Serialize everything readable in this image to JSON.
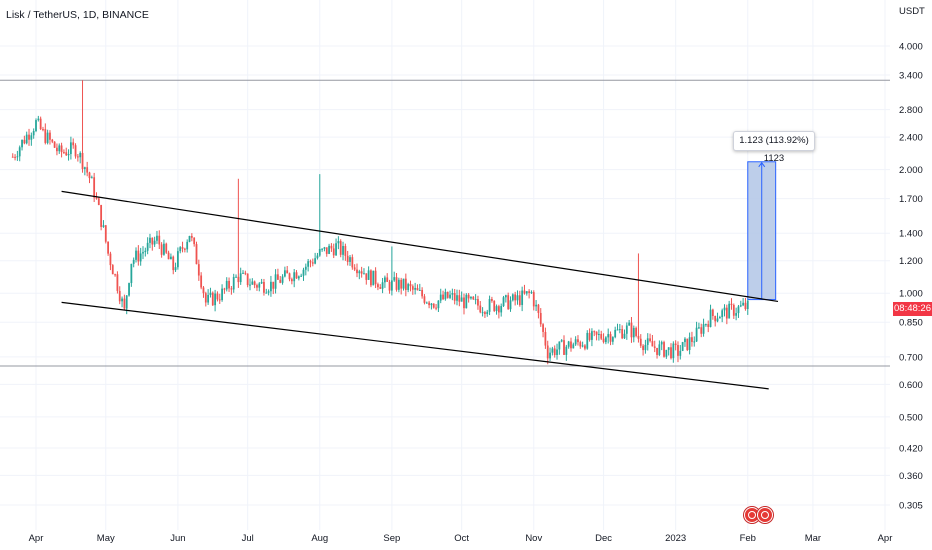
{
  "header": {
    "symbol": "Lisk / TetherUS",
    "separator1": ", ",
    "interval": "1D",
    "separator2": ", ",
    "exchange": "BINANCE"
  },
  "price_axis": {
    "currency": "USDT",
    "labels": [
      "4.000",
      "3.400",
      "2.800",
      "2.400",
      "2.000",
      "1.700",
      "1.400",
      "1.200",
      "1.000",
      "0.850",
      "0.700",
      "0.600",
      "0.500",
      "0.420",
      "0.360",
      "0.305"
    ]
  },
  "time_axis": {
    "labels": [
      "Apr",
      "May",
      "Jun",
      "Jul",
      "Aug",
      "Sep",
      "Oct",
      "Nov",
      "Dec",
      "2023",
      "Feb",
      "Mar",
      "Apr"
    ]
  },
  "countdown": "08:48:26",
  "measure": {
    "label": "1.123 (113.92%) 1123"
  },
  "colors": {
    "up": "#26a69a",
    "down": "#ef5350",
    "trendline": "#000000",
    "measure_fill": "#b2c6e6",
    "measure_border": "#2962ff",
    "horizontal_line": "#9598a1",
    "grid": "#f0f3fa",
    "axis_text": "#131722",
    "price_badge": "#f23645"
  },
  "chart_data": {
    "type": "candlestick",
    "title": "Lisk / TetherUS, 1D, BINANCE",
    "scale": "log",
    "ylabel": "USDT",
    "ylim": [
      0.29,
      4.6
    ],
    "grid": true,
    "horizontal_lines": [
      3.3,
      0.665
    ],
    "channel_lines": [
      {
        "from": {
          "date": "2022-04-12",
          "price": 1.77
        },
        "to": {
          "date": "2023-02-14",
          "price": 0.955
        }
      },
      {
        "from": {
          "date": "2022-04-12",
          "price": 0.95
        },
        "to": {
          "date": "2023-02-10",
          "price": 0.585
        }
      }
    ],
    "measure_box": {
      "from_date": "2023-02-01",
      "to_date": "2023-02-13",
      "low": 0.965,
      "high": 2.09,
      "change": 1.123,
      "percent": 113.92,
      "bars": 1123
    },
    "current_price": 0.925,
    "series": [
      {
        "x": [
          "2022-03-22",
          "2022-04-01",
          "2022-04-04",
          "2022-04-11",
          "2022-04-18",
          "2022-04-21",
          "2022-04-25",
          "2022-05-02",
          "2022-05-09",
          "2022-05-12",
          "2022-05-16",
          "2022-05-23",
          "2022-05-30",
          "2022-06-06",
          "2022-06-13",
          "2022-06-20",
          "2022-06-27",
          "2022-07-04",
          "2022-07-11",
          "2022-07-18",
          "2022-07-25",
          "2022-08-01",
          "2022-08-08",
          "2022-08-15",
          "2022-08-22",
          "2022-08-29",
          "2022-09-05",
          "2022-09-12",
          "2022-09-19",
          "2022-09-26",
          "2022-10-03",
          "2022-10-10",
          "2022-10-17",
          "2022-10-24",
          "2022-10-31",
          "2022-11-07",
          "2022-11-14",
          "2022-11-21",
          "2022-11-28",
          "2022-12-05",
          "2022-12-12",
          "2022-12-19",
          "2022-12-26",
          "2023-01-02",
          "2023-01-09",
          "2023-01-16",
          "2023-01-23",
          "2023-01-30"
        ],
        "close": [
          2.15,
          2.6,
          2.45,
          2.2,
          2.25,
          2.1,
          1.85,
          1.25,
          0.9,
          1.2,
          1.25,
          1.35,
          1.15,
          1.4,
          0.95,
          1.0,
          1.1,
          1.05,
          1.05,
          1.1,
          1.15,
          1.25,
          1.3,
          1.2,
          1.1,
          1.05,
          1.05,
          1.0,
          0.95,
          0.98,
          0.95,
          0.93,
          0.94,
          0.96,
          1.0,
          0.72,
          0.74,
          0.76,
          0.78,
          0.8,
          0.82,
          0.75,
          0.73,
          0.72,
          0.78,
          0.88,
          0.9,
          0.925
        ]
      }
    ]
  }
}
